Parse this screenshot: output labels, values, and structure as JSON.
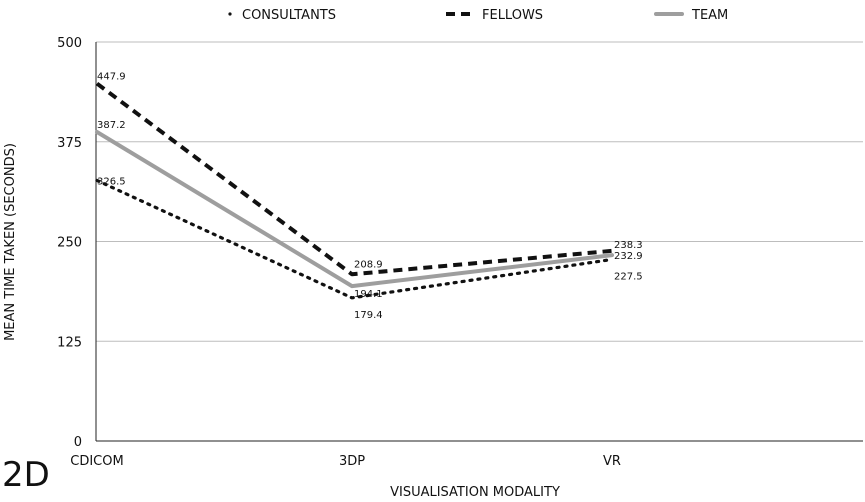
{
  "panel_label": "2D",
  "chart_data": {
    "type": "line",
    "categories": [
      "CDICOM",
      "3DP",
      "VR"
    ],
    "series": [
      {
        "name": "CONSULTANTS",
        "values": [
          326.5,
          179.4,
          227.5
        ],
        "color": "#111111",
        "style": "dotted"
      },
      {
        "name": "FELLOWS",
        "values": [
          447.9,
          208.9,
          238.3
        ],
        "color": "#111111",
        "style": "dashed"
      },
      {
        "name": "TEAM",
        "values": [
          387.2,
          194.1,
          232.9
        ],
        "color": "#9e9e9e",
        "style": "solid"
      }
    ],
    "title": "",
    "xlabel": "VISUALISATION MODALITY",
    "ylabel": "MEAN TIME TAKEN (SECONDS)",
    "ylim": [
      0,
      500
    ],
    "yticks": [
      "0",
      "125",
      "250",
      "375",
      "500"
    ],
    "data_labels": [
      "326.5",
      "179.4",
      "227.5",
      "447.9",
      "208.9",
      "238.3",
      "387.2",
      "194.1",
      "232.9"
    ],
    "grid": true,
    "legend_position": "top"
  }
}
